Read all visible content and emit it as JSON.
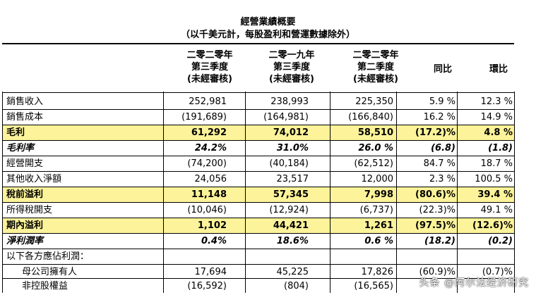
{
  "title": "經營業績概要",
  "subtitle": "（以千美元計，每股盈利和營運數據除外）",
  "columns": {
    "c1": [
      "二零二零年",
      "第三季度",
      "(未經審核)"
    ],
    "c2": [
      "二零一九年",
      "第三季度",
      "(未經審核)"
    ],
    "c3": [
      "二零二零年",
      "第二季度",
      "(未經審核)"
    ],
    "c4": "同比",
    "c5": "環比"
  },
  "rows": [
    {
      "label": "銷售收入",
      "v": [
        "252,981",
        "238,993",
        "225,350",
        "5.9 %",
        "12.3 %"
      ]
    },
    {
      "label": "銷售成本",
      "v": [
        "(191,689)",
        "(164,981)",
        "(166,840)",
        "16.2 %",
        "14.9 %"
      ]
    },
    {
      "label": "毛利",
      "v": [
        "61,292",
        "74,012",
        "58,510",
        "(17.2)%",
        "4.8 %"
      ]
    },
    {
      "label": "毛利率",
      "v": [
        "24.2%",
        "31.0%",
        "26.0 %",
        "(6.8)",
        "(1.8)"
      ]
    },
    {
      "label": "經營開支",
      "v": [
        "(74,200)",
        "(40,184)",
        "(62,512)",
        "84.7 %",
        "18.7 %"
      ]
    },
    {
      "label": "其他收入淨額",
      "v": [
        "24,056",
        "23,517",
        "12,000",
        "2.3 %",
        "100.5 %"
      ]
    },
    {
      "label": "稅前溢利",
      "v": [
        "11,148",
        "57,345",
        "7,998",
        "(80.6)%",
        "39.4 %"
      ]
    },
    {
      "label": "所得稅開支",
      "v": [
        "(10,046)",
        "(12,924)",
        "(6,737)",
        "(22.3)%",
        "49.1 %"
      ]
    },
    {
      "label": "期內溢利",
      "v": [
        "1,102",
        "44,421",
        "1,261",
        "(97.5)%",
        "(12.6)%"
      ]
    },
    {
      "label": "淨利潤率",
      "v": [
        "0.4%",
        "18.6%",
        "0.6 %",
        "(18.2)",
        "(0.2)"
      ]
    },
    {
      "label": "以下各方應佔利潤：",
      "v": [
        "",
        "",
        "",
        "",
        ""
      ]
    },
    {
      "label": "母公司擁有人",
      "v": [
        "17,694",
        "45,225",
        "17,826",
        "(60.9)%",
        "(0.7)%"
      ]
    },
    {
      "label": "非控股權益",
      "v": [
        "(16,592)",
        "(804)",
        "(16,565)",
        "",
        ""
      ]
    }
  ],
  "watermark": "头条 @阿尔法经济研究",
  "colors": {
    "highlight": "#fcf39a"
  }
}
